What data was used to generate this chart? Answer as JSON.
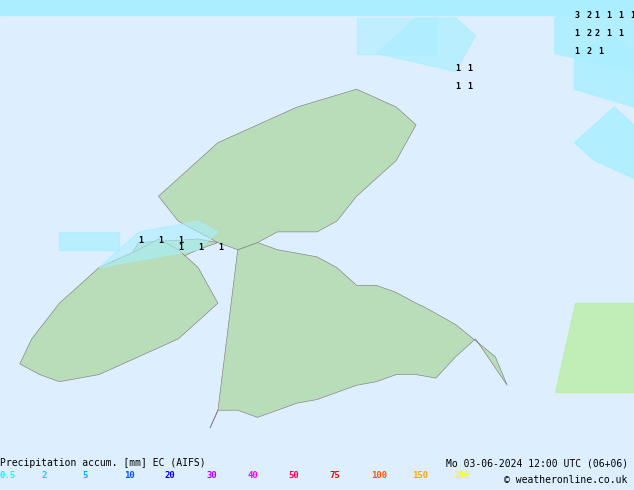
{
  "title_left": "Precipitation accum. [mm] EC (AIFS)",
  "title_right": "Mo 03-06-2024 12:00 UTC (06+06)",
  "copyright": "© weatheronline.co.uk",
  "legend_values": [
    "0.5",
    "2",
    "5",
    "10",
    "20",
    "30",
    "40",
    "50",
    "75",
    "100",
    "150",
    "200"
  ],
  "legend_colors": [
    "#00ffff",
    "#00d4ff",
    "#00aaff",
    "#0055ff",
    "#0000ff",
    "#aa00ff",
    "#ff00ff",
    "#ff0055",
    "#ff0000",
    "#ff5500",
    "#ffaa00",
    "#ffff00"
  ],
  "background_color": "#ddeeff",
  "map_bg": "#ddeeff",
  "sea_color": "#cce8f0",
  "land_color_low": "#cceecc",
  "fig_width": 6.34,
  "fig_height": 4.9,
  "dpi": 100
}
